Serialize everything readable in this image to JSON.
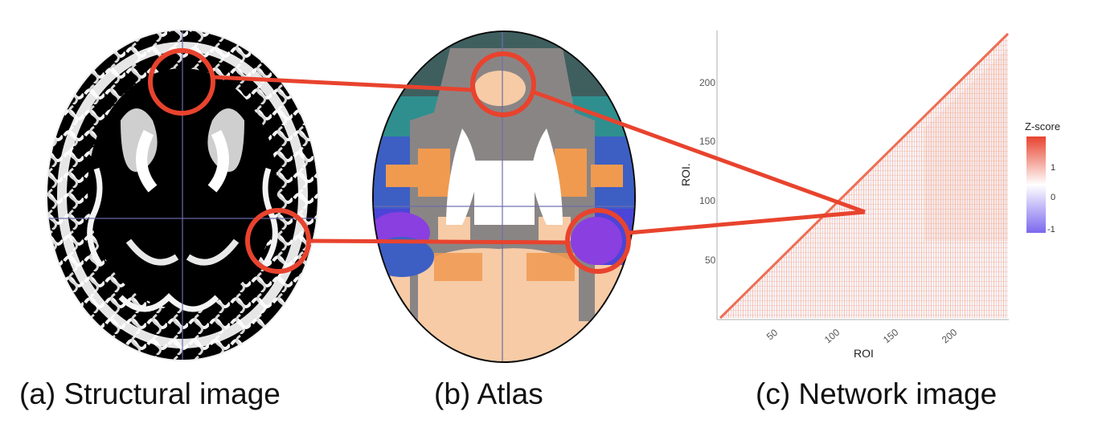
{
  "captions": {
    "a": "(a) Structural image",
    "b": "(b) Atlas",
    "c": "(c) Network image"
  },
  "network": {
    "x_axis_title": "ROI",
    "y_axis_title": "ROI.",
    "x_ticks": [
      "50",
      "100",
      "150",
      "200"
    ],
    "y_ticks": [
      "50",
      "100",
      "150",
      "200"
    ],
    "legend_title": "Z-score",
    "legend_ticks": [
      "1",
      "0",
      "-1"
    ]
  },
  "colors": {
    "highlight": "#e8432e",
    "zscore_high": "#e8432e",
    "zscore_mid": "#ffffff",
    "zscore_low": "#7b68ee",
    "atlas_peach": "#f6cba6",
    "atlas_orange": "#f09a50",
    "atlas_teal": "#2f8f8f",
    "atlas_blue": "#3d5fc4",
    "atlas_purple": "#8a3fe0",
    "atlas_gray": "#8a8585"
  }
}
